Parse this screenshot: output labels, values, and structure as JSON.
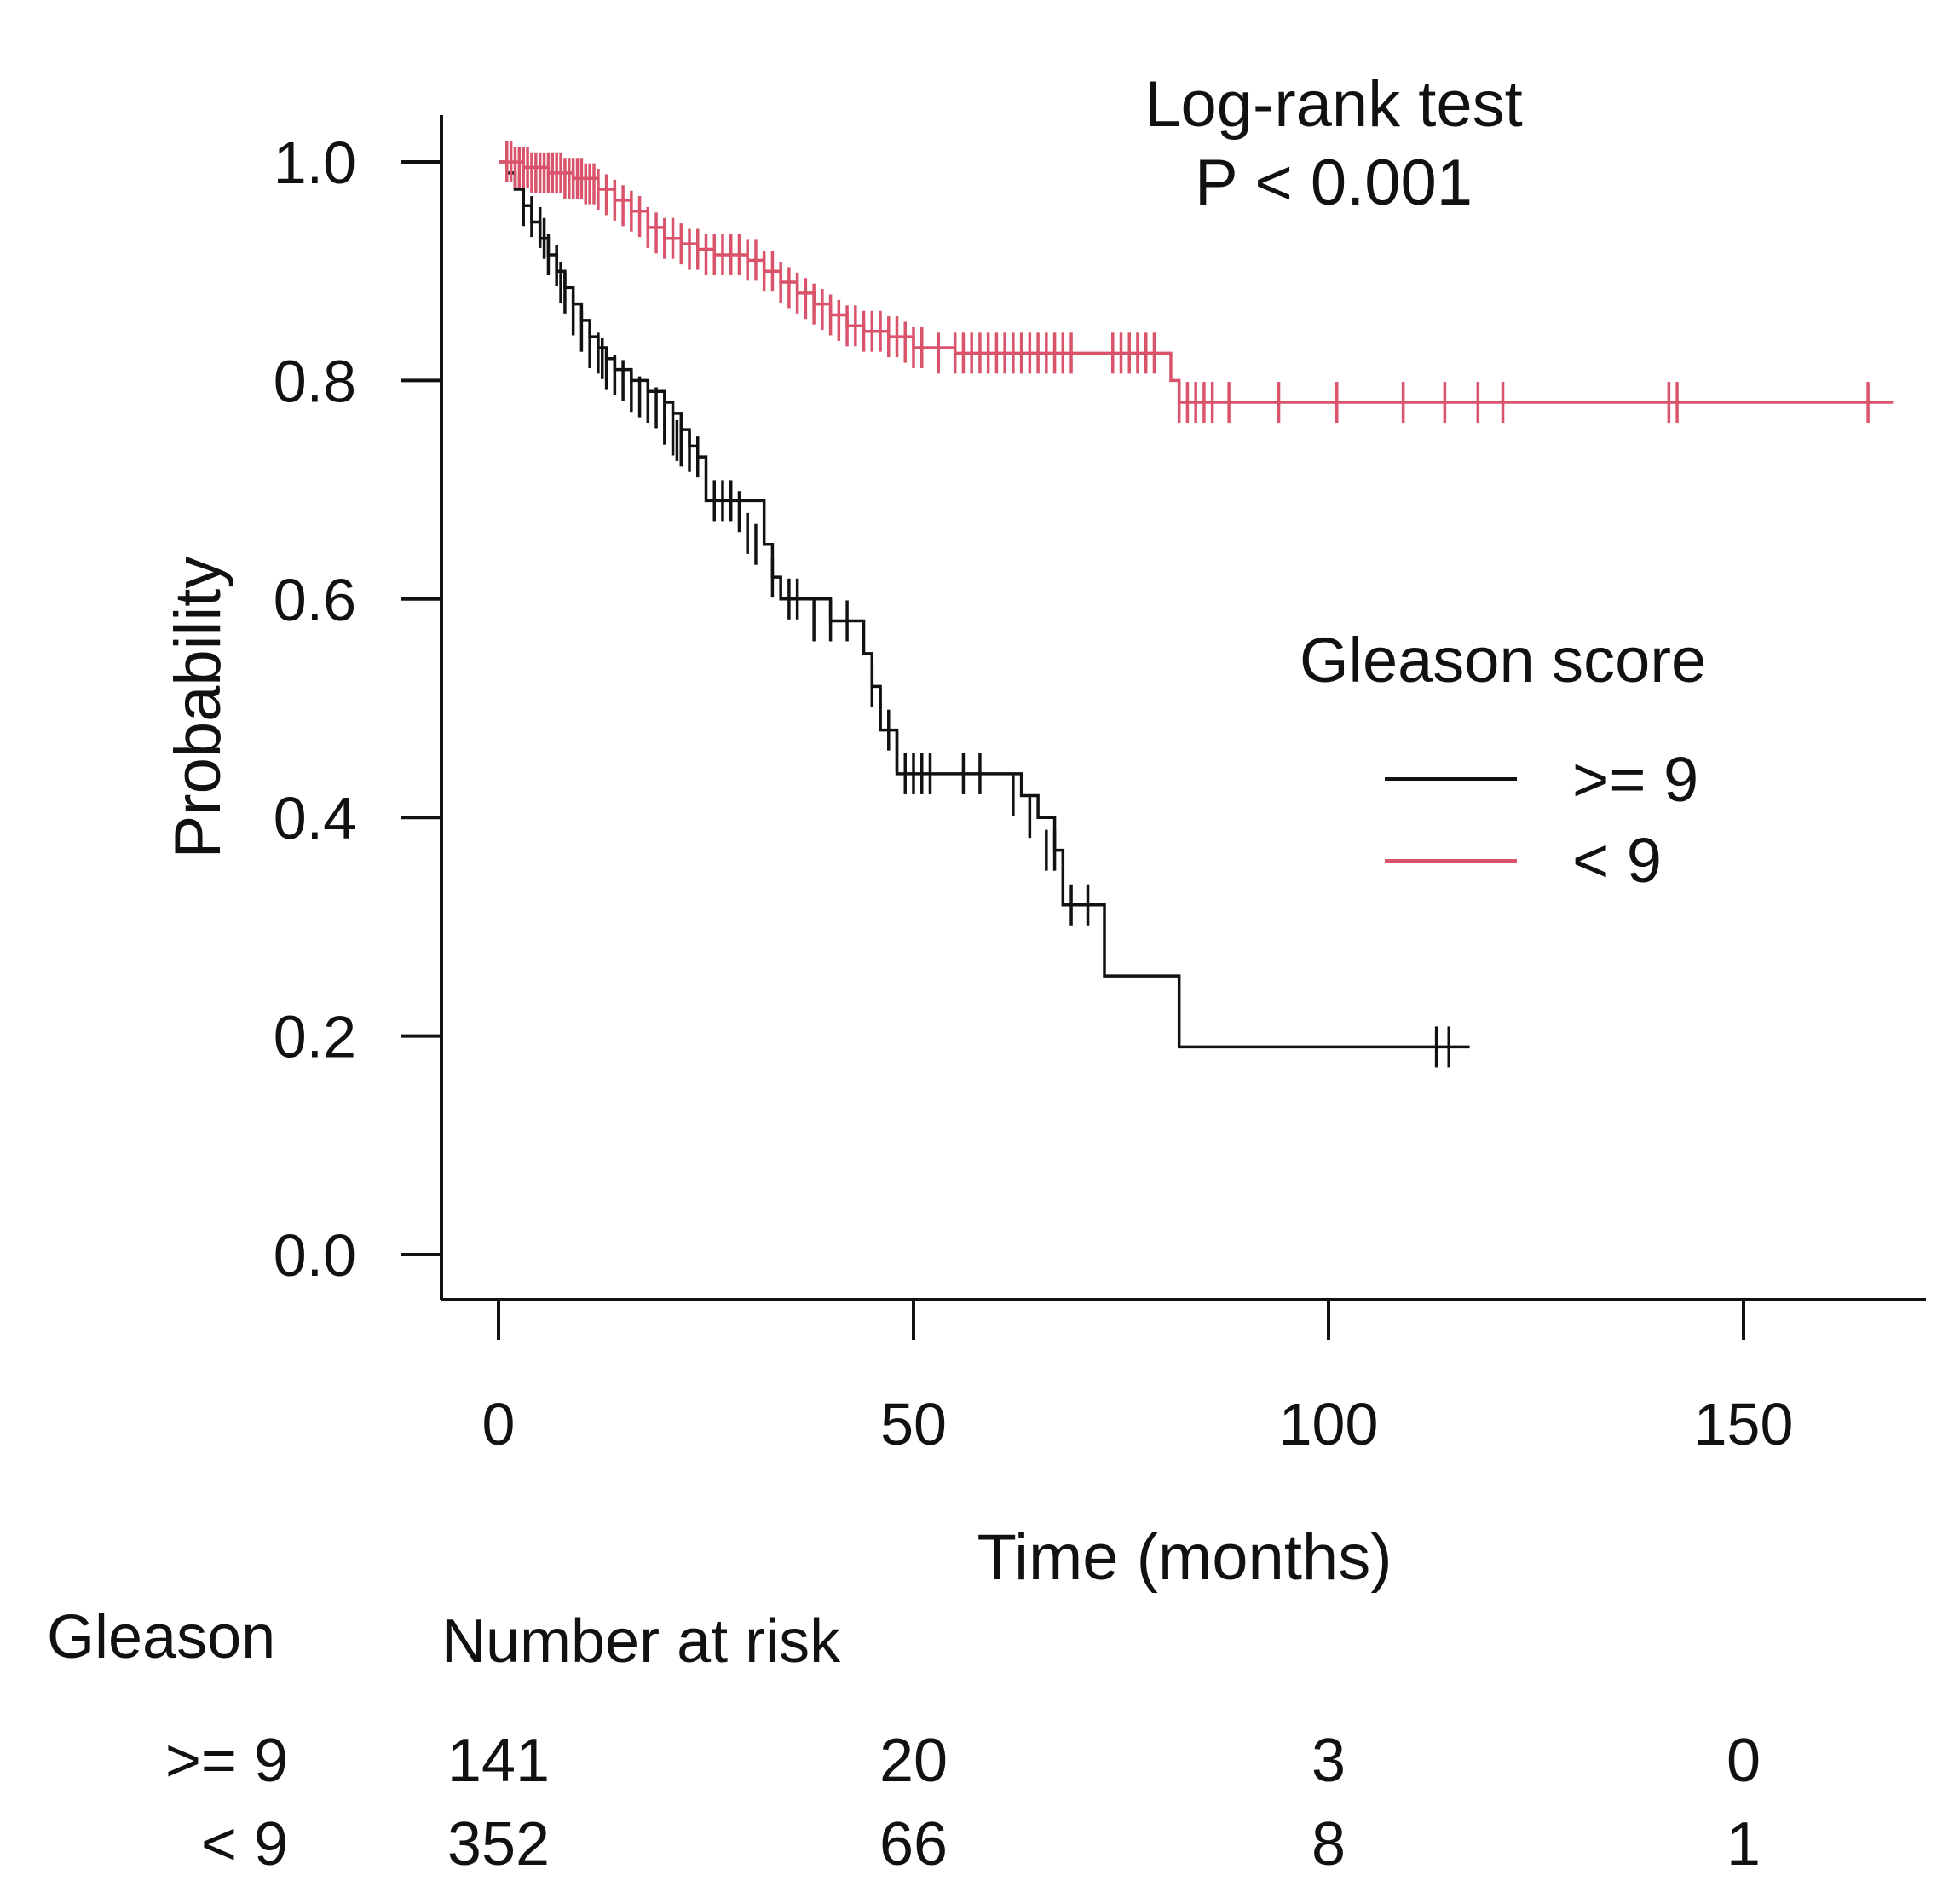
{
  "chart_data": {
    "type": "line",
    "subtype": "kaplan-meier",
    "annotation_lines": [
      "Log-rank test",
      "P < 0.001"
    ],
    "xlabel": "Time (months)",
    "ylabel": "Probability",
    "xlim": [
      0,
      170
    ],
    "ylim": [
      0,
      1.0
    ],
    "xticks": [
      0,
      50,
      100,
      150
    ],
    "xtick_labels": [
      "0",
      "50",
      "100",
      "150"
    ],
    "yticks": [
      0.0,
      0.2,
      0.4,
      0.6,
      0.8,
      1.0
    ],
    "ytick_labels": [
      "0.0",
      "0.2",
      "0.4",
      "0.6",
      "0.8",
      "1.0"
    ],
    "legend_title": "Gleason score",
    "legend_position": "right",
    "series": [
      {
        "name": ">= 9",
        "color": "#111111",
        "steps": [
          [
            0,
            1.0
          ],
          [
            1,
            0.99
          ],
          [
            2,
            0.975
          ],
          [
            3,
            0.96
          ],
          [
            4,
            0.945
          ],
          [
            5,
            0.93
          ],
          [
            6,
            0.915
          ],
          [
            7,
            0.9
          ],
          [
            8,
            0.885
          ],
          [
            9,
            0.87
          ],
          [
            10,
            0.855
          ],
          [
            11,
            0.84
          ],
          [
            12,
            0.83
          ],
          [
            13,
            0.82
          ],
          [
            14,
            0.81
          ],
          [
            16,
            0.8
          ],
          [
            18,
            0.79
          ],
          [
            20,
            0.78
          ],
          [
            21,
            0.77
          ],
          [
            22,
            0.755
          ],
          [
            23,
            0.74
          ],
          [
            24,
            0.73
          ],
          [
            25,
            0.69
          ],
          [
            32,
            0.65
          ],
          [
            33,
            0.62
          ],
          [
            34,
            0.6
          ],
          [
            40,
            0.58
          ],
          [
            44,
            0.55
          ],
          [
            45,
            0.52
          ],
          [
            46,
            0.48
          ],
          [
            48,
            0.44
          ],
          [
            63,
            0.42
          ],
          [
            65,
            0.4
          ],
          [
            67,
            0.37
          ],
          [
            68,
            0.32
          ],
          [
            73,
            0.255
          ],
          [
            82,
            0.19
          ],
          [
            117,
            0.19
          ]
        ],
        "censor_times": [
          3,
          4,
          5,
          5.5,
          6,
          7,
          7.5,
          8,
          9,
          10,
          11,
          12,
          12.5,
          13,
          14,
          15,
          16,
          17,
          18,
          19,
          20,
          21,
          21.5,
          22,
          23,
          24,
          26,
          27,
          28,
          29,
          30,
          31,
          33,
          35,
          36,
          38,
          40,
          42,
          45,
          46,
          47,
          48,
          49,
          50,
          51,
          52,
          56,
          58,
          62,
          64,
          66,
          67,
          69,
          71,
          113,
          114.5
        ],
        "censor_values": [
          0.96,
          0.95,
          0.94,
          0.93,
          0.915,
          0.905,
          0.89,
          0.88,
          0.86,
          0.845,
          0.83,
          0.825,
          0.82,
          0.81,
          0.805,
          0.8,
          0.79,
          0.785,
          0.78,
          0.775,
          0.76,
          0.75,
          0.745,
          0.74,
          0.735,
          0.73,
          0.69,
          0.69,
          0.69,
          0.68,
          0.66,
          0.65,
          0.62,
          0.6,
          0.6,
          0.58,
          0.58,
          0.58,
          0.52,
          0.5,
          0.48,
          0.46,
          0.44,
          0.44,
          0.44,
          0.44,
          0.44,
          0.44,
          0.42,
          0.4,
          0.37,
          0.37,
          0.32,
          0.32,
          0.19,
          0.19
        ]
      },
      {
        "name": "< 9",
        "color": "#d9536a",
        "steps": [
          [
            0,
            1.0
          ],
          [
            3,
            0.995
          ],
          [
            6,
            0.99
          ],
          [
            9,
            0.985
          ],
          [
            12,
            0.975
          ],
          [
            14,
            0.965
          ],
          [
            16,
            0.955
          ],
          [
            18,
            0.94
          ],
          [
            20,
            0.93
          ],
          [
            22,
            0.925
          ],
          [
            24,
            0.92
          ],
          [
            26,
            0.915
          ],
          [
            30,
            0.91
          ],
          [
            32,
            0.9
          ],
          [
            34,
            0.89
          ],
          [
            36,
            0.88
          ],
          [
            38,
            0.87
          ],
          [
            40,
            0.86
          ],
          [
            42,
            0.85
          ],
          [
            44,
            0.845
          ],
          [
            47,
            0.84
          ],
          [
            50,
            0.83
          ],
          [
            55,
            0.825
          ],
          [
            80,
            0.825
          ],
          [
            81,
            0.8
          ],
          [
            82,
            0.78
          ],
          [
            168,
            0.78
          ]
        ],
        "censor_times": [
          1,
          1.5,
          2,
          2.5,
          3,
          3.5,
          4,
          4.5,
          5,
          5.5,
          6,
          6.5,
          7,
          7.5,
          8,
          8.5,
          9,
          9.5,
          10,
          10.5,
          11,
          11.5,
          12,
          13,
          14,
          15,
          16,
          17,
          18,
          19,
          20,
          21,
          22,
          23,
          24,
          25,
          26,
          27,
          28,
          29,
          30,
          31,
          32,
          33,
          34,
          35,
          36,
          37,
          38,
          39,
          40,
          41,
          42,
          43,
          44,
          45,
          46,
          47,
          48,
          49,
          50,
          51,
          53,
          55,
          56,
          57,
          58,
          59,
          60,
          61,
          62,
          63,
          64,
          65,
          66,
          67,
          68,
          69,
          74,
          75,
          76,
          77,
          78,
          79,
          82,
          83,
          84,
          85,
          86,
          88,
          94,
          101,
          109,
          114,
          118,
          121,
          141,
          142,
          165
        ],
        "censor_values": [
          1.0,
          1.0,
          0.995,
          0.995,
          0.995,
          0.995,
          0.99,
          0.99,
          0.99,
          0.99,
          0.99,
          0.99,
          0.99,
          0.99,
          0.985,
          0.985,
          0.985,
          0.985,
          0.985,
          0.98,
          0.98,
          0.98,
          0.975,
          0.97,
          0.965,
          0.96,
          0.955,
          0.95,
          0.94,
          0.935,
          0.93,
          0.93,
          0.925,
          0.92,
          0.92,
          0.915,
          0.915,
          0.915,
          0.915,
          0.915,
          0.91,
          0.91,
          0.9,
          0.9,
          0.89,
          0.885,
          0.88,
          0.875,
          0.87,
          0.865,
          0.86,
          0.855,
          0.85,
          0.85,
          0.845,
          0.845,
          0.845,
          0.84,
          0.84,
          0.835,
          0.83,
          0.83,
          0.825,
          0.825,
          0.825,
          0.825,
          0.825,
          0.825,
          0.825,
          0.825,
          0.825,
          0.825,
          0.825,
          0.825,
          0.825,
          0.825,
          0.825,
          0.825,
          0.825,
          0.825,
          0.825,
          0.825,
          0.825,
          0.825,
          0.78,
          0.78,
          0.78,
          0.78,
          0.78,
          0.78,
          0.78,
          0.78,
          0.78,
          0.78,
          0.78,
          0.78,
          0.78,
          0.78,
          0.78
        ]
      }
    ],
    "risk_table": {
      "group_header": "Gleason",
      "header": "Number at risk",
      "times": [
        0,
        50,
        100,
        150
      ],
      "rows": [
        {
          "label": ">= 9",
          "values": [
            "141",
            "20",
            "3",
            "0"
          ]
        },
        {
          "label": "< 9",
          "values": [
            "352",
            "66",
            "8",
            "1"
          ]
        }
      ]
    }
  }
}
